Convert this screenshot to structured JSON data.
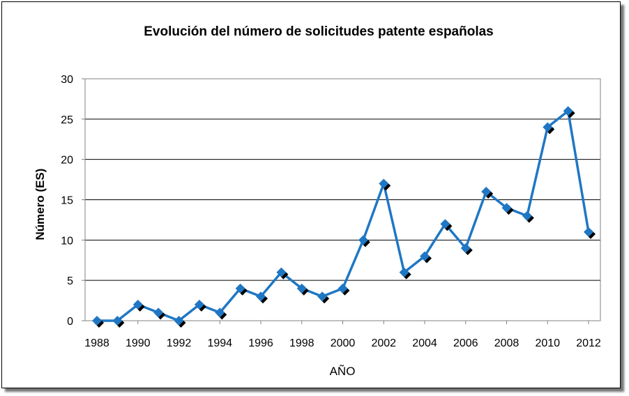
{
  "chart_data": {
    "type": "line",
    "title": "Evolución del número de solicitudes patente españolas",
    "xlabel": "AÑO",
    "ylabel": "Número (ES)",
    "ylim": [
      0,
      30
    ],
    "yticks": [
      0,
      5,
      10,
      15,
      20,
      25,
      30
    ],
    "xlim": [
      1988,
      2012
    ],
    "xticks": [
      1988,
      1990,
      1992,
      1994,
      1996,
      1998,
      2000,
      2002,
      2004,
      2006,
      2008,
      2010,
      2012
    ],
    "grid": true,
    "legend": "none",
    "series": [
      {
        "color": "#1f77c4",
        "marker": "diamond",
        "x": [
          1988,
          1989,
          1990,
          1991,
          1992,
          1993,
          1994,
          1995,
          1996,
          1997,
          1998,
          1999,
          2000,
          2001,
          2002,
          2003,
          2004,
          2005,
          2006,
          2007,
          2008,
          2009,
          2010,
          2011,
          2012
        ],
        "values": [
          0,
          0,
          2,
          1,
          0,
          2,
          1,
          4,
          3,
          6,
          4,
          3,
          4,
          10,
          17,
          6,
          8,
          12,
          9,
          16,
          14,
          13,
          24,
          26,
          11
        ]
      }
    ]
  }
}
